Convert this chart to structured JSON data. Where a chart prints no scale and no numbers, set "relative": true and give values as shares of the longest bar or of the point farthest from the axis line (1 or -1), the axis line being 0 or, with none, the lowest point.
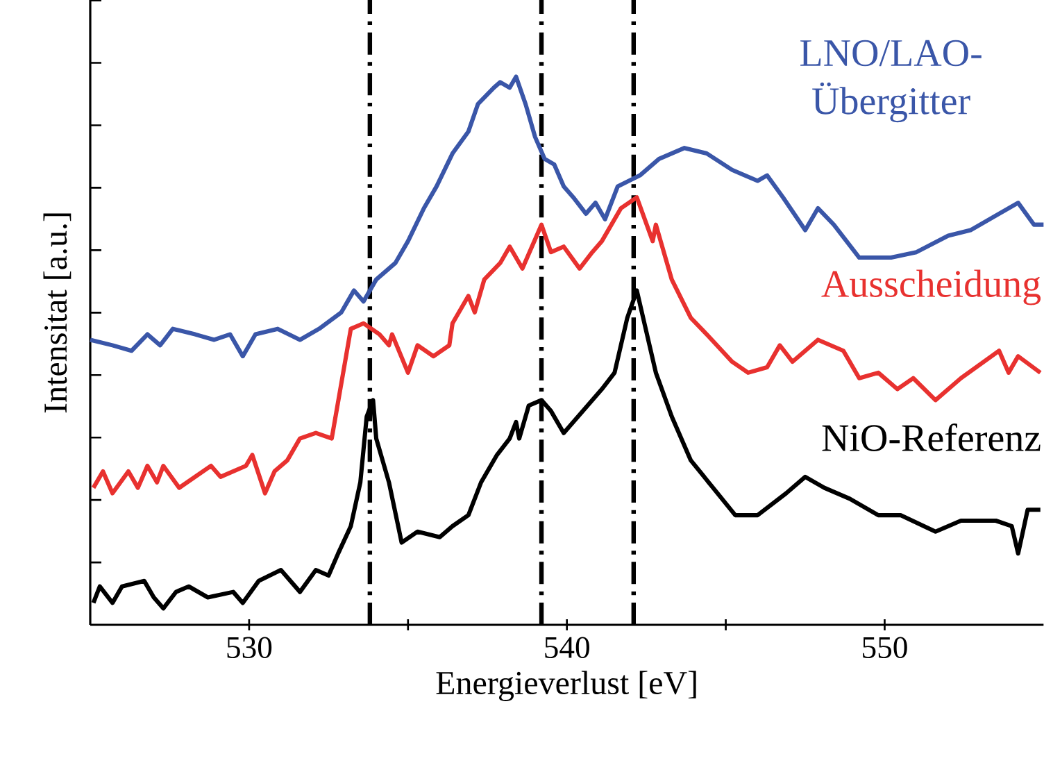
{
  "chart_data": {
    "type": "line",
    "relative": true,
    "xlabel": "Energieverlust [eV]",
    "ylabel": "Intensitat [a.u.]",
    "xlim": [
      525,
      555
    ],
    "xticks": [
      530,
      {
        "value": 535,
        "label": null
      },
      540,
      {
        "value": 545,
        "label": null
      },
      550
    ],
    "line_style": "solid",
    "marker": "none",
    "ref_lines": [
      {
        "axis": "x",
        "value": 533.8,
        "color": "#000000",
        "line_style": "dashdot"
      },
      {
        "axis": "x",
        "value": 539.2,
        "color": "#000000",
        "line_style": "dashdot"
      },
      {
        "axis": "x",
        "value": 542.1,
        "color": "#000000",
        "line_style": "dashdot"
      }
    ],
    "series": [
      {
        "name": "LNO/LAO-Übergitter",
        "color": "#3a56a8",
        "x": [
          525.0,
          525.7,
          526.3,
          526.8,
          527.2,
          527.6,
          528.3,
          528.9,
          529.4,
          529.8,
          530.2,
          530.9,
          531.6,
          532.2,
          532.9,
          533.3,
          533.6,
          534.0,
          534.6,
          535.0,
          535.5,
          535.9,
          536.4,
          536.9,
          537.2,
          537.7,
          537.9,
          538.2,
          538.4,
          538.7,
          539.0,
          539.3,
          539.6,
          539.9,
          540.2,
          540.6,
          540.9,
          541.2,
          541.6,
          542.3,
          542.9,
          543.7,
          544.4,
          545.2,
          546.0,
          546.3,
          546.8,
          547.5,
          547.9,
          548.4,
          549.2,
          550.2,
          551.0,
          552.0,
          552.7,
          553.6,
          554.2,
          554.7,
          555.0
        ],
        "values": [
          0.52,
          0.51,
          0.5,
          0.53,
          0.51,
          0.54,
          0.53,
          0.52,
          0.53,
          0.49,
          0.53,
          0.54,
          0.52,
          0.54,
          0.57,
          0.61,
          0.59,
          0.63,
          0.66,
          0.7,
          0.76,
          0.8,
          0.86,
          0.9,
          0.95,
          0.98,
          0.99,
          0.98,
          1.0,
          0.95,
          0.89,
          0.85,
          0.84,
          0.8,
          0.78,
          0.75,
          0.77,
          0.74,
          0.8,
          0.82,
          0.85,
          0.87,
          0.86,
          0.83,
          0.81,
          0.82,
          0.78,
          0.72,
          0.76,
          0.73,
          0.67,
          0.67,
          0.68,
          0.71,
          0.72,
          0.75,
          0.77,
          0.73,
          0.73
        ]
      },
      {
        "name": "Ausscheidung",
        "color": "#e8312f",
        "x": [
          525.1,
          525.4,
          525.7,
          526.2,
          526.5,
          526.8,
          527.1,
          527.3,
          527.8,
          528.8,
          529.1,
          529.9,
          530.1,
          530.5,
          530.8,
          531.2,
          531.6,
          532.1,
          532.6,
          533.2,
          533.6,
          534.1,
          534.4,
          534.5,
          535.0,
          535.3,
          535.8,
          536.3,
          536.4,
          536.9,
          537.1,
          537.4,
          537.9,
          538.2,
          538.6,
          538.9,
          539.2,
          539.5,
          539.9,
          540.4,
          540.8,
          541.1,
          541.7,
          542.2,
          542.7,
          542.8,
          543.3,
          543.9,
          544.4,
          545.2,
          545.7,
          546.3,
          546.7,
          547.1,
          547.9,
          548.7,
          549.2,
          549.8,
          550.4,
          550.9,
          551.6,
          552.4,
          553.6,
          553.9,
          554.2,
          554.9
        ],
        "values": [
          0.25,
          0.28,
          0.24,
          0.28,
          0.25,
          0.29,
          0.26,
          0.29,
          0.25,
          0.29,
          0.27,
          0.29,
          0.31,
          0.24,
          0.28,
          0.3,
          0.34,
          0.35,
          0.34,
          0.54,
          0.55,
          0.53,
          0.51,
          0.53,
          0.46,
          0.51,
          0.49,
          0.51,
          0.55,
          0.6,
          0.57,
          0.63,
          0.66,
          0.69,
          0.65,
          0.69,
          0.73,
          0.68,
          0.69,
          0.65,
          0.68,
          0.7,
          0.76,
          0.78,
          0.7,
          0.73,
          0.63,
          0.56,
          0.53,
          0.48,
          0.46,
          0.47,
          0.51,
          0.48,
          0.52,
          0.5,
          0.45,
          0.46,
          0.43,
          0.45,
          0.41,
          0.45,
          0.5,
          0.46,
          0.49,
          0.46
        ]
      },
      {
        "name": "NiO-Referenz",
        "color": "#000000",
        "x": [
          525.1,
          525.3,
          525.7,
          526.0,
          526.7,
          527.0,
          527.3,
          527.7,
          528.1,
          528.7,
          529.5,
          529.8,
          530.3,
          531.0,
          531.6,
          532.1,
          532.5,
          532.8,
          533.2,
          533.5,
          533.7,
          533.9,
          534.0,
          534.4,
          534.8,
          535.3,
          536.0,
          536.4,
          536.9,
          537.3,
          537.8,
          538.2,
          538.4,
          538.5,
          538.8,
          539.2,
          539.5,
          539.9,
          540.5,
          541.1,
          541.5,
          541.9,
          542.2,
          542.6,
          542.8,
          543.3,
          543.9,
          544.6,
          545.3,
          546.0,
          546.9,
          547.5,
          548.1,
          548.9,
          549.8,
          550.5,
          551.6,
          552.4,
          553.5,
          554.0,
          554.2,
          554.5,
          554.9
        ],
        "values": [
          0.04,
          0.07,
          0.04,
          0.07,
          0.08,
          0.05,
          0.03,
          0.06,
          0.07,
          0.05,
          0.06,
          0.04,
          0.08,
          0.1,
          0.06,
          0.1,
          0.09,
          0.13,
          0.18,
          0.26,
          0.38,
          0.41,
          0.34,
          0.26,
          0.15,
          0.17,
          0.16,
          0.18,
          0.2,
          0.26,
          0.31,
          0.34,
          0.37,
          0.34,
          0.4,
          0.41,
          0.39,
          0.35,
          0.39,
          0.43,
          0.46,
          0.56,
          0.61,
          0.51,
          0.46,
          0.38,
          0.3,
          0.25,
          0.2,
          0.2,
          0.24,
          0.27,
          0.25,
          0.23,
          0.2,
          0.2,
          0.17,
          0.19,
          0.19,
          0.18,
          0.13,
          0.21,
          0.21
        ]
      }
    ]
  }
}
